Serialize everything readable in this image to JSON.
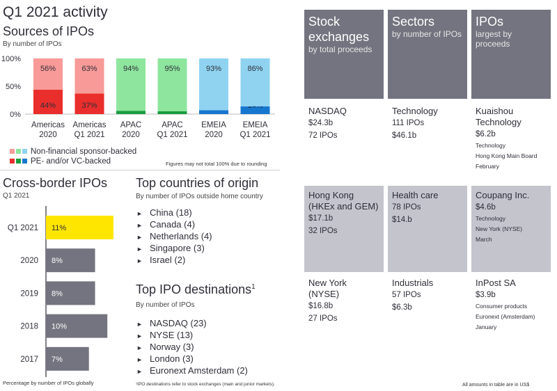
{
  "title": "Q1 2021 activity",
  "sources": {
    "heading": "Sources of IPOs",
    "subheading": "By number of IPOs",
    "legend": [
      {
        "label": "Non-financial sponsor-backed",
        "colors": [
          "#f79a98",
          "#8ee59e",
          "#8fd3f1"
        ]
      },
      {
        "label": "PE- and/or VC-backed",
        "colors": [
          "#ea2e2c",
          "#189d3e",
          "#1777cf"
        ]
      }
    ],
    "footnote": "Figures may not total 100% due to rounding"
  },
  "crossborder": {
    "heading": "Cross-border IPOs",
    "subheading": "Q1 2021",
    "footnote": "Percentage by number of IPOs globally"
  },
  "countries": {
    "heading": "Top countries of origin",
    "subheading": "By number of IPOs outside home country",
    "items": [
      "China (18)",
      "Canada (4)",
      "Netherlands (4)",
      "Singapore (3)",
      "Israel (2)"
    ]
  },
  "destinations": {
    "heading": "Top IPO destinations",
    "sup": "1",
    "subheading": "By number of IPOs",
    "items": [
      "NASDAQ (23)",
      "NYSE (13)",
      "Norway (3)",
      "London (3)",
      "Euronext Amsterdam (2)"
    ],
    "footnote": "¹IPO destinations refer to stock exchanges (main and junior markets)."
  },
  "table": {
    "headers": [
      {
        "title": "Stock exchanges",
        "sub": "by total proceeds"
      },
      {
        "title": "Sectors",
        "sub": "by number of IPOs"
      },
      {
        "title": "IPOs",
        "sub": "largest by proceeds"
      }
    ],
    "rows": [
      [
        {
          "name": "NASDAQ",
          "lines": [
            "$24.3b",
            "72 IPOs"
          ],
          "details": []
        },
        {
          "name": "Technology",
          "lines": [
            "111 IPOs",
            "$46.1b"
          ],
          "details": []
        },
        {
          "name": "Kuaishou Technology",
          "lines": [
            "$6.2b"
          ],
          "details": [
            "Technology",
            "Hong Kong Main Board",
            "February"
          ]
        }
      ],
      [
        {
          "name": "Hong Kong (HKEx and GEM)",
          "lines": [
            "$17.1b",
            "32 IPOs"
          ],
          "details": []
        },
        {
          "name": "Health care",
          "lines": [
            "78 IPOs",
            "$14.b"
          ],
          "details": []
        },
        {
          "name": "Coupang Inc.",
          "lines": [
            "$4.6b"
          ],
          "details": [
            "Technology",
            "New York (NYSE)",
            "March"
          ]
        }
      ],
      [
        {
          "name": "New York (NYSE)",
          "lines": [
            "$16.8b",
            "27 IPOs"
          ],
          "details": []
        },
        {
          "name": "Industrials",
          "lines": [
            "57 IPOs",
            "$6.3b"
          ],
          "details": []
        },
        {
          "name": "InPost SA",
          "lines": [
            "$3.9b"
          ],
          "details": [
            "Consumer products",
            "Euronext (Amsterdam)",
            "January"
          ]
        }
      ]
    ],
    "footnote": "All amounts in table are in US$"
  },
  "chart_data": [
    {
      "type": "bar",
      "stacked": true,
      "categories": [
        "Americas 2020",
        "Americas Q1 2021",
        "APAC 2020",
        "APAC Q1 2021",
        "EMEIA 2020",
        "EMEIA Q1 2021"
      ],
      "category_lines": [
        [
          "Americas",
          "2020"
        ],
        [
          "Americas",
          "Q1 2021"
        ],
        [
          "APAC",
          "2020"
        ],
        [
          "APAC",
          "Q1 2021"
        ],
        [
          "EMEIA",
          "2020"
        ],
        [
          "EMEIA",
          "Q1 2021"
        ]
      ],
      "series": [
        {
          "name": "PE- and/or VC-backed",
          "values": [
            44,
            37,
            6,
            5,
            7,
            14
          ],
          "colors": [
            "#ea2e2c",
            "#ea2e2c",
            "#189d3e",
            "#189d3e",
            "#1777cf",
            "#1777cf"
          ]
        },
        {
          "name": "Non-financial sponsor-backed",
          "values": [
            56,
            63,
            94,
            95,
            93,
            86
          ],
          "colors": [
            "#f79a98",
            "#f79a98",
            "#8ee59e",
            "#8ee59e",
            "#8fd3f1",
            "#8fd3f1"
          ]
        }
      ],
      "ylim": [
        0,
        100
      ],
      "yticks": [
        "0%",
        "50%",
        "100%"
      ],
      "grid": false
    },
    {
      "type": "bar",
      "orientation": "horizontal",
      "categories": [
        "Q1 2021",
        "2020",
        "2019",
        "2018",
        "2017"
      ],
      "values": [
        11,
        8,
        8,
        10,
        7
      ],
      "labels": [
        "11%",
        "8%",
        "8%",
        "10%",
        "7%"
      ],
      "colors": [
        "#ffe600",
        "#747480",
        "#747480",
        "#747480",
        "#747480"
      ],
      "xlim": [
        0,
        12
      ]
    }
  ]
}
